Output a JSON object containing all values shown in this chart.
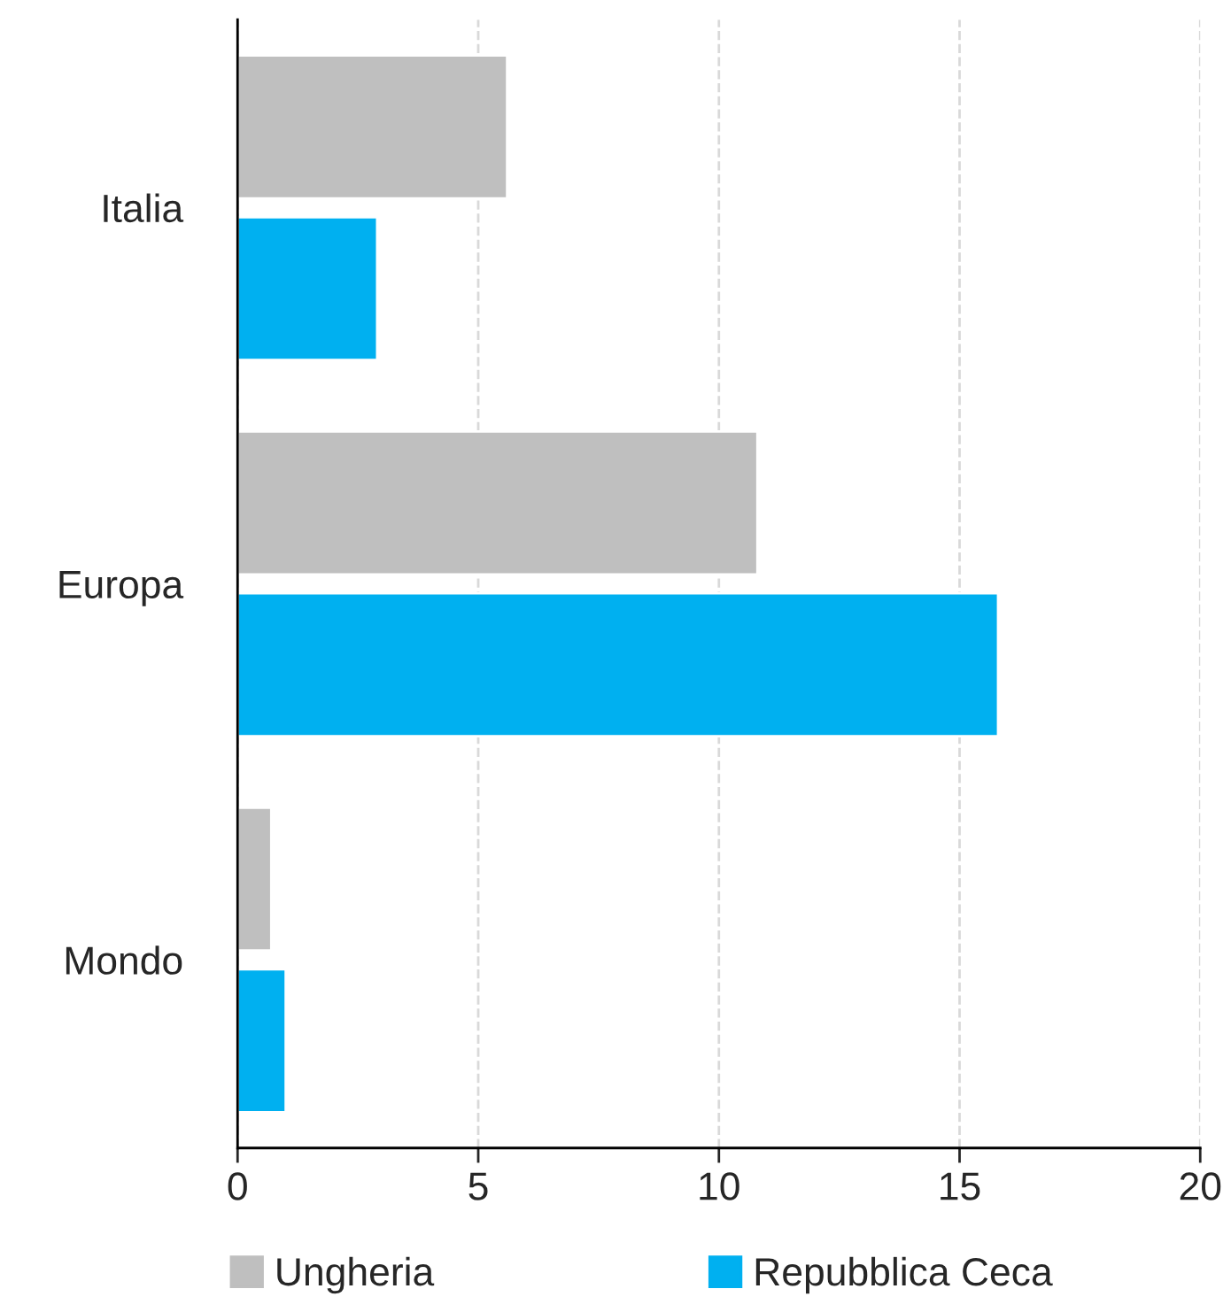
{
  "chart_data": {
    "type": "bar",
    "orientation": "horizontal",
    "categories": [
      "Italia",
      "Europa",
      "Mondo"
    ],
    "series": [
      {
        "name": "Ungheria",
        "color": "#bfbfbf",
        "values": [
          5.6,
          10.8,
          0.7
        ]
      },
      {
        "name": "Repubblica Ceca",
        "color": "#00b0f0",
        "values": [
          2.9,
          15.8,
          1.0
        ]
      }
    ],
    "xlim": [
      0,
      20
    ],
    "xticks": [
      0,
      5,
      10,
      15,
      20
    ],
    "grid": "x",
    "legend": "bottom"
  }
}
